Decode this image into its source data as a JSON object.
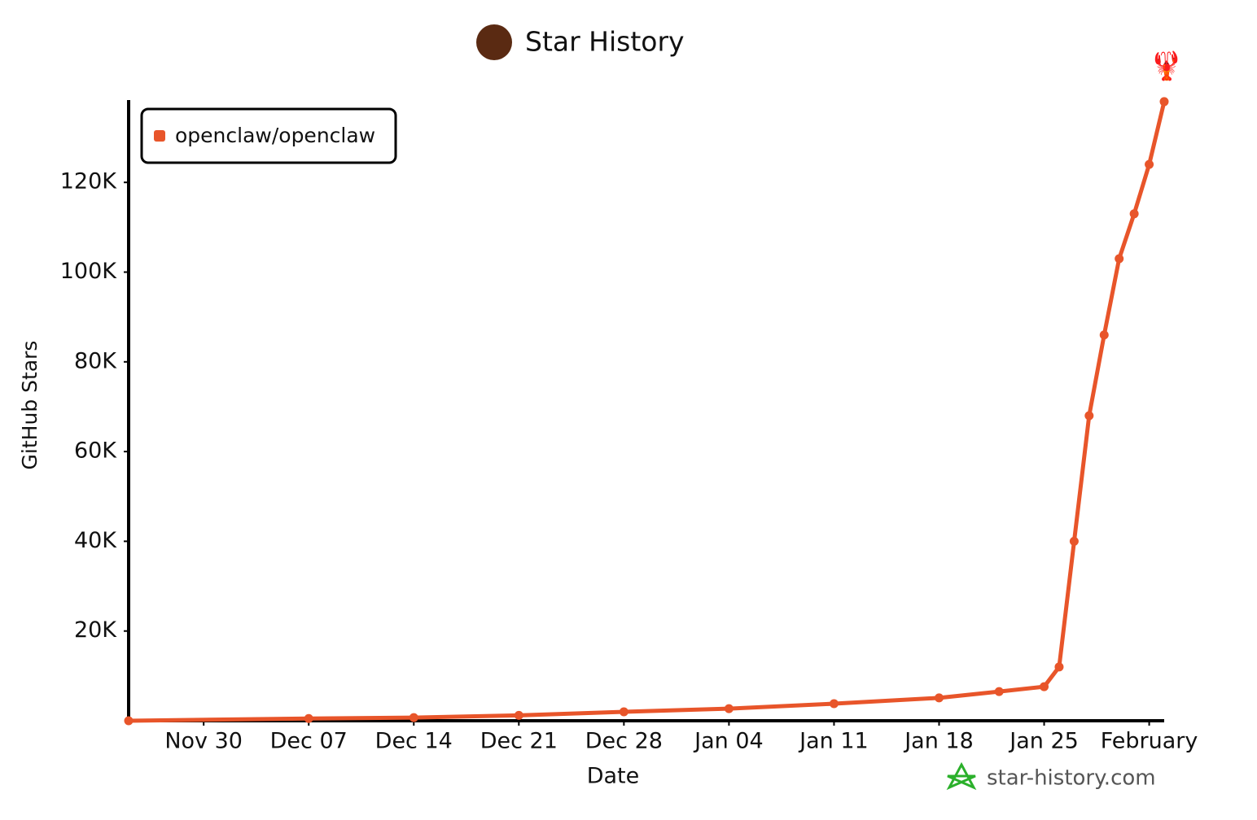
{
  "chart_data": {
    "type": "line",
    "title": "Star History",
    "x_label": "Date",
    "y_label": "GitHub Stars",
    "annotation": "🦞",
    "watermark": "star-history.com",
    "x": [
      "Nov 25",
      "Dec 07",
      "Dec 14",
      "Dec 21",
      "Dec 28",
      "Jan 04",
      "Jan 11",
      "Jan 18",
      "Jan 22",
      "Jan 25",
      "Jan 26",
      "Jan 27",
      "Jan 28",
      "Jan 29",
      "Jan 30",
      "Jan 31",
      "Feb 01",
      "Feb 02"
    ],
    "series": [
      {
        "name": "openclaw/openclaw",
        "color": "#e8552a",
        "values": [
          0,
          500,
          700,
          1200,
          2000,
          2700,
          3800,
          5100,
          6500,
          7600,
          12000,
          40000,
          68000,
          86000,
          103000,
          113000,
          124000,
          138000
        ]
      }
    ],
    "xlim": [
      "Nov 25",
      "Feb 02"
    ],
    "xticks": [
      "Nov 30",
      "Dec 07",
      "Dec 14",
      "Dec 21",
      "Dec 28",
      "Jan 04",
      "Jan 11",
      "Jan 18",
      "Jan 25",
      {
        "value": "Feb 01",
        "label": "February"
      }
    ],
    "ylim": [
      0,
      138000
    ],
    "yticks": [
      {
        "value": 20000,
        "label": "20K"
      },
      {
        "value": 40000,
        "label": "40K"
      },
      {
        "value": 60000,
        "label": "60K"
      },
      {
        "value": 80000,
        "label": "80K"
      },
      {
        "value": 100000,
        "label": "100K"
      },
      {
        "value": 120000,
        "label": "120K"
      }
    ],
    "legend": "top-left"
  }
}
